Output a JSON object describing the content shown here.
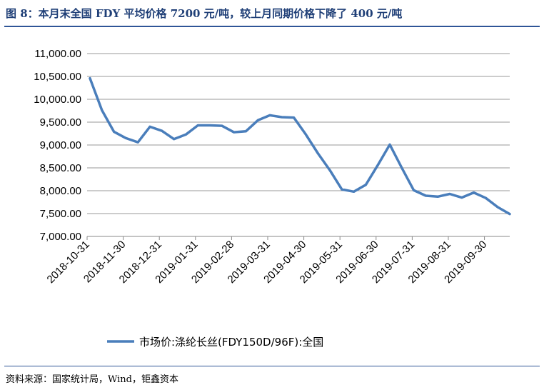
{
  "header": {
    "title": "图 8：本月末全国 FDY 平均价格 7200 元/吨，较上月同期价格下降了 400 元/吨"
  },
  "footer": {
    "source": "资料来源：国家统计局，Wind，钜鑫资本"
  },
  "colors": {
    "line": "#4a7ebb",
    "accent": "#2f5597",
    "grid": "#999999"
  },
  "chart_data": {
    "type": "line",
    "title": "",
    "xlabel": "",
    "ylabel": "",
    "ylim": [
      7000,
      11000
    ],
    "y_ticks": [
      "11,000.00",
      "10,500.00",
      "10,000.00",
      "9,500.00",
      "9,000.00",
      "8,500.00",
      "8,000.00",
      "7,500.00",
      "7,000.00"
    ],
    "x_ticks": [
      "2018-10-31",
      "2018-11-30",
      "2018-12-31",
      "2019-01-31",
      "2019-02-28",
      "2019-03-31",
      "2019-04-30",
      "2019-05-31",
      "2019-06-30",
      "2019-07-31",
      "2019-08-31",
      "2019-09-30"
    ],
    "grid": "horizontal",
    "legend_position": "bottom",
    "series": [
      {
        "name": "市场价:涤纶长丝(FDY150D/96F):全国",
        "values": [
          10460,
          9760,
          9290,
          9150,
          9060,
          9400,
          9310,
          9130,
          9230,
          9430,
          9430,
          9420,
          9280,
          9300,
          9540,
          9650,
          9610,
          9600,
          9230,
          8820,
          8450,
          8030,
          7980,
          8130,
          8560,
          9010,
          8500,
          8010,
          7890,
          7870,
          7930,
          7850,
          7960,
          7840,
          7640,
          7490
        ]
      }
    ]
  }
}
